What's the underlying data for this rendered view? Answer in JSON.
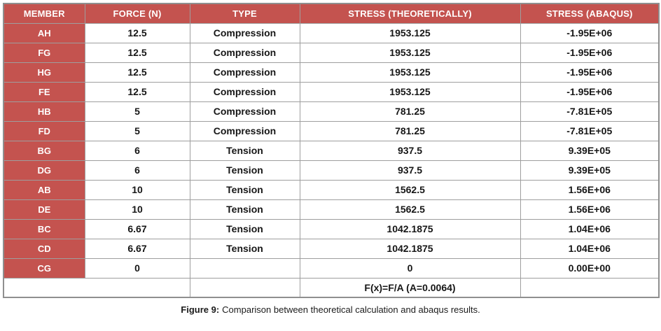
{
  "colors": {
    "header_red": "#c4534f",
    "border_gray": "#9e9e9e",
    "text_dark": "#161616"
  },
  "table": {
    "columns": [
      "MEMBER",
      "FORCE (N)",
      "TYPE",
      "STRESS (THEORETICALLY)",
      "STRESS (ABAQUS)"
    ],
    "rows": [
      {
        "member": "AH",
        "force": "12.5",
        "type": "Compression",
        "stress_theoretical": "1953.125",
        "stress_abaqus": "-1.95E+06"
      },
      {
        "member": "FG",
        "force": "12.5",
        "type": "Compression",
        "stress_theoretical": "1953.125",
        "stress_abaqus": "-1.95E+06"
      },
      {
        "member": "HG",
        "force": "12.5",
        "type": "Compression",
        "stress_theoretical": "1953.125",
        "stress_abaqus": "-1.95E+06"
      },
      {
        "member": "FE",
        "force": "12.5",
        "type": "Compression",
        "stress_theoretical": "1953.125",
        "stress_abaqus": "-1.95E+06"
      },
      {
        "member": "HB",
        "force": "5",
        "type": "Compression",
        "stress_theoretical": "781.25",
        "stress_abaqus": "-7.81E+05"
      },
      {
        "member": "FD",
        "force": "5",
        "type": "Compression",
        "stress_theoretical": "781.25",
        "stress_abaqus": "-7.81E+05"
      },
      {
        "member": "BG",
        "force": "6",
        "type": "Tension",
        "stress_theoretical": "937.5",
        "stress_abaqus": "9.39E+05"
      },
      {
        "member": "DG",
        "force": "6",
        "type": "Tension",
        "stress_theoretical": "937.5",
        "stress_abaqus": "9.39E+05"
      },
      {
        "member": "AB",
        "force": "10",
        "type": "Tension",
        "stress_theoretical": "1562.5",
        "stress_abaqus": "1.56E+06"
      },
      {
        "member": "DE",
        "force": "10",
        "type": "Tension",
        "stress_theoretical": "1562.5",
        "stress_abaqus": "1.56E+06"
      },
      {
        "member": "BC",
        "force": "6.67",
        "type": "Tension",
        "stress_theoretical": "1042.1875",
        "stress_abaqus": "1.04E+06"
      },
      {
        "member": "CD",
        "force": "6.67",
        "type": "Tension",
        "stress_theoretical": "1042.1875",
        "stress_abaqus": "1.04E+06"
      },
      {
        "member": "CG",
        "force": "0",
        "type": "",
        "stress_theoretical": "0",
        "stress_abaqus": "0.00E+00"
      }
    ],
    "formula": "F(x)=F/A (A=0.0064)"
  },
  "caption": {
    "label": "Figure 9:",
    "text": "Comparison between theoretical calculation and abaqus results."
  },
  "chart_data": {
    "type": "table",
    "title": "Comparison between theoretical calculation and abaqus results",
    "columns": [
      "MEMBER",
      "FORCE (N)",
      "TYPE",
      "STRESS (THEORETICALLY)",
      "STRESS (ABAQUS)"
    ],
    "rows": [
      [
        "AH",
        12.5,
        "Compression",
        1953.125,
        "-1.95E+06"
      ],
      [
        "FG",
        12.5,
        "Compression",
        1953.125,
        "-1.95E+06"
      ],
      [
        "HG",
        12.5,
        "Compression",
        1953.125,
        "-1.95E+06"
      ],
      [
        "FE",
        12.5,
        "Compression",
        1953.125,
        "-1.95E+06"
      ],
      [
        "HB",
        5,
        "Compression",
        781.25,
        "-7.81E+05"
      ],
      [
        "FD",
        5,
        "Compression",
        781.25,
        "-7.81E+05"
      ],
      [
        "BG",
        6,
        "Tension",
        937.5,
        "9.39E+05"
      ],
      [
        "DG",
        6,
        "Tension",
        937.5,
        "9.39E+05"
      ],
      [
        "AB",
        10,
        "Tension",
        1562.5,
        "1.56E+06"
      ],
      [
        "DE",
        10,
        "Tension",
        1562.5,
        "1.56E+06"
      ],
      [
        "BC",
        6.67,
        "Tension",
        1042.1875,
        "1.04E+06"
      ],
      [
        "CD",
        6.67,
        "Tension",
        1042.1875,
        "1.04E+06"
      ],
      [
        "CG",
        0,
        "",
        0,
        "0.00E+00"
      ]
    ],
    "footer_note": "F(x)=F/A (A=0.0064)"
  }
}
